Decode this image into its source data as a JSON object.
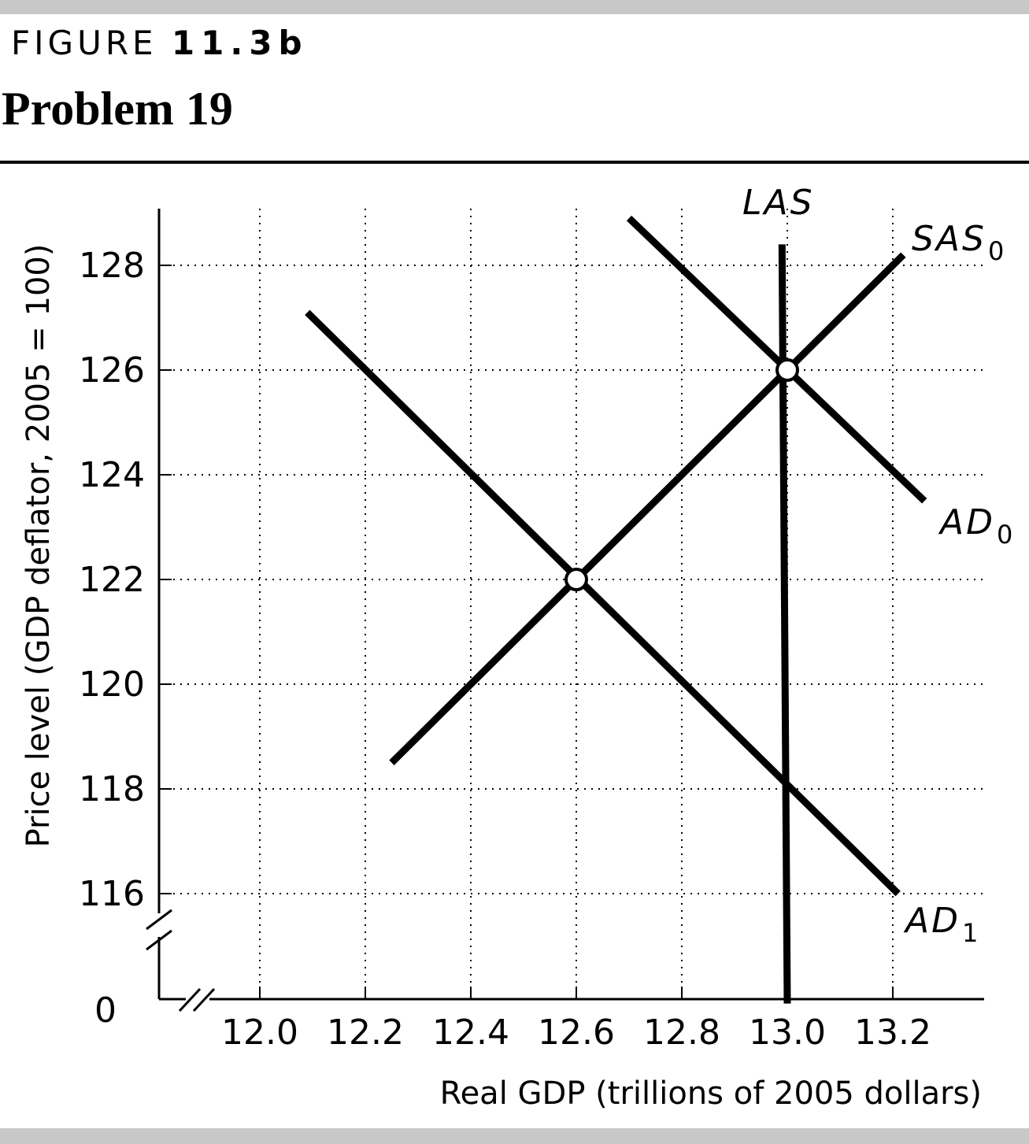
{
  "header": {
    "figure_prefix": "FIGURE",
    "figure_number": "11.3b",
    "problem_title": "Problem 19"
  },
  "chart_data": {
    "type": "line",
    "xlabel": "Real GDP (trillions of 2005 dollars)",
    "ylabel": "Price level (GDP deflator, 2005 = 100)",
    "x_ticks": [
      "12.0",
      "12.2",
      "12.4",
      "12.6",
      "12.8",
      "13.0",
      "13.2"
    ],
    "y_ticks": [
      "128",
      "126",
      "124",
      "122",
      "120",
      "118",
      "116"
    ],
    "origin_label": "0",
    "xlim": [
      11.81,
      13.38
    ],
    "ylim": [
      113.9,
      129.0
    ],
    "axis_breaks": true,
    "grid": "dotted",
    "series": [
      {
        "name": "LAS",
        "base": "LAS",
        "sub": "",
        "x": [
          12.99,
          13.0
        ],
        "y": [
          128.4,
          113.9
        ]
      },
      {
        "name": "SAS0",
        "base": "SAS",
        "sub": "0",
        "x": [
          12.25,
          13.22
        ],
        "y": [
          118.5,
          128.2
        ]
      },
      {
        "name": "AD0",
        "base": "AD",
        "sub": "0",
        "x": [
          12.7,
          13.26
        ],
        "y": [
          128.9,
          123.5
        ]
      },
      {
        "name": "AD1",
        "base": "AD",
        "sub": "1",
        "x": [
          12.09,
          13.21
        ],
        "y": [
          127.1,
          116.0
        ]
      }
    ],
    "points": [
      {
        "x": 13.0,
        "y": 126
      },
      {
        "x": 12.6,
        "y": 122
      }
    ],
    "colors": {
      "line": "#000000",
      "grid": "#000000",
      "background": "#ffffff",
      "band": "#c8c8c8"
    }
  }
}
